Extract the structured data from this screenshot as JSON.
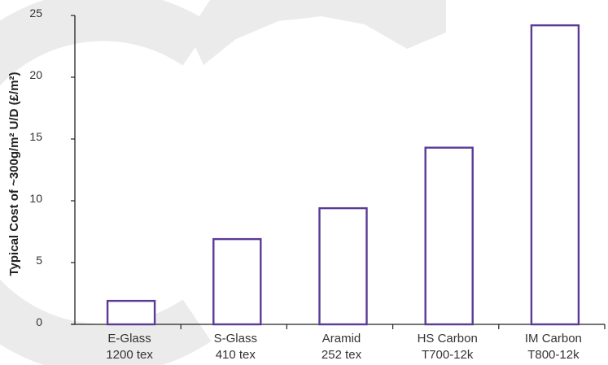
{
  "chart_data": {
    "type": "bar",
    "categories": [
      [
        "E-Glass",
        "1200 tex"
      ],
      [
        "S-Glass",
        "410 tex"
      ],
      [
        "Aramid",
        "252 tex"
      ],
      [
        "HS Carbon",
        "T700-12k"
      ],
      [
        "IM Carbon",
        "T800-12k"
      ]
    ],
    "values": [
      1.9,
      6.9,
      9.4,
      14.3,
      24.2
    ],
    "ylabel": "Typical Cost of ~300g/m² U/D (£/m²)",
    "xlabel": "",
    "ylim": [
      0,
      25
    ],
    "yticks": [
      0,
      5,
      10,
      15,
      20,
      25
    ],
    "grid": false,
    "legend": "none"
  },
  "colors": {
    "bar_stroke": "#5b3a96",
    "bar_fill": "#ffffff",
    "axis": "#222222",
    "watermark": "#ebebeb"
  }
}
